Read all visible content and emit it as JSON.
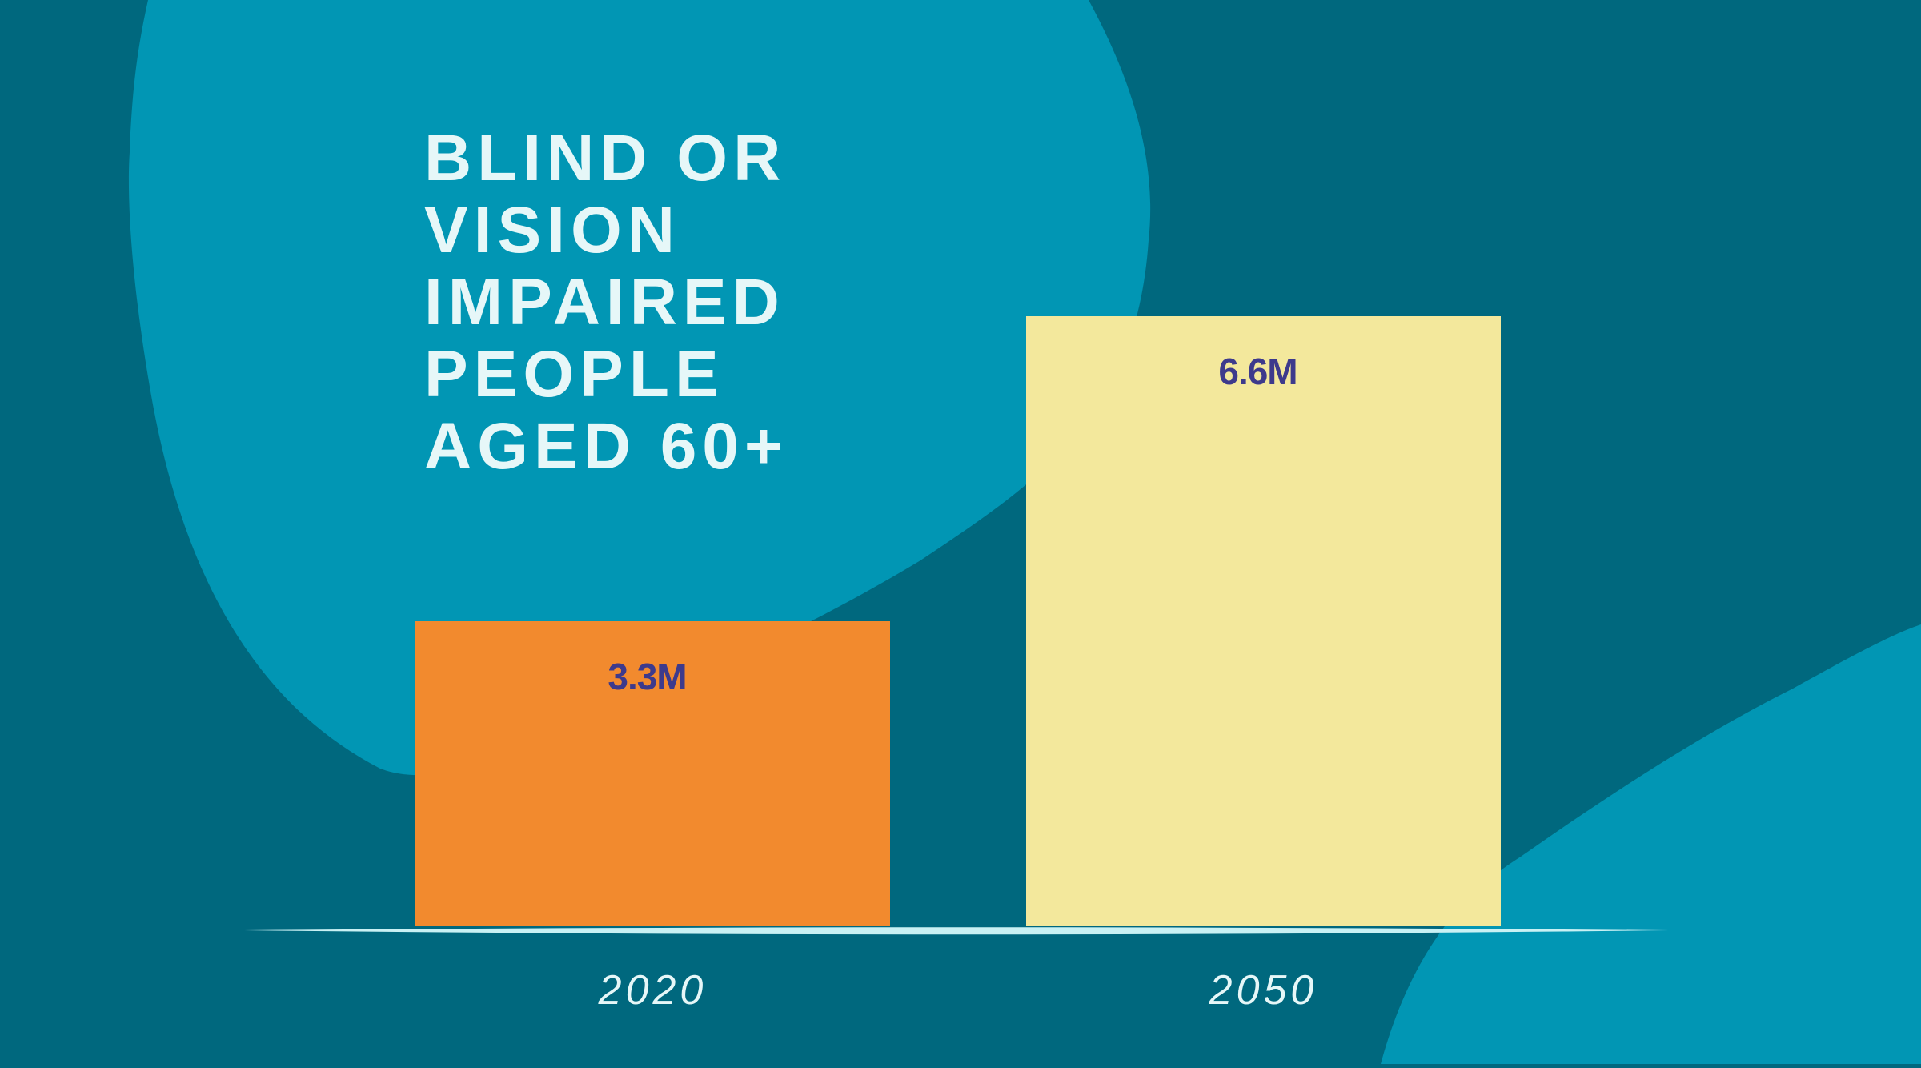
{
  "colors": {
    "background": "#00687e",
    "blob": "#0196b4",
    "baseline": "#c9f1f4",
    "label_text": "#3d3a8c",
    "title_text": "#e6f7f8"
  },
  "chart_data": {
    "type": "bar",
    "title_lines": [
      "BLIND OR",
      "VISION",
      "IMPAIRED",
      "PEOPLE",
      "AGED 60+"
    ],
    "categories": [
      "2020",
      "2050"
    ],
    "values": [
      3.3,
      6.6
    ],
    "value_labels": [
      "3.3M",
      "6.6M"
    ],
    "bar_colors": [
      "#f28a2e",
      "#f3e89c"
    ],
    "unit": "M",
    "xlabel": "",
    "ylabel": "",
    "ylim": [
      0,
      6.6
    ],
    "grid": false,
    "legend": "none"
  }
}
